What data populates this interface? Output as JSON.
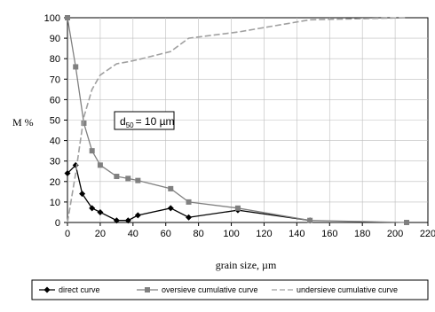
{
  "chart_data": {
    "type": "line",
    "title": "",
    "xlabel": "grain size,  µm",
    "ylabel": "M %",
    "xlim": [
      0,
      220
    ],
    "ylim": [
      0,
      100
    ],
    "x_ticks": [
      0,
      20,
      40,
      60,
      80,
      100,
      120,
      140,
      160,
      180,
      200,
      220
    ],
    "y_ticks": [
      0,
      10,
      20,
      30,
      40,
      50,
      60,
      70,
      80,
      90,
      100
    ],
    "grid": true,
    "legend_position": "bottom",
    "annotation": {
      "main": "d",
      "sub": "50",
      "value": "= 10 µm"
    },
    "series": [
      {
        "name": "direct curve",
        "marker": "diamond",
        "color": "#000000",
        "line_style": "solid",
        "points": [
          {
            "x": 0,
            "y": 24
          },
          {
            "x": 5,
            "y": 28
          },
          {
            "x": 9,
            "y": 14
          },
          {
            "x": 15,
            "y": 7
          },
          {
            "x": 20,
            "y": 5
          },
          {
            "x": 30,
            "y": 1
          },
          {
            "x": 37,
            "y": 1
          },
          {
            "x": 43,
            "y": 3.5
          },
          {
            "x": 63,
            "y": 7
          },
          {
            "x": 74,
            "y": 2.5
          },
          {
            "x": 104,
            "y": 6
          },
          {
            "x": 148,
            "y": 1
          }
        ]
      },
      {
        "name": "oversieve cumulative curve",
        "marker": "square",
        "color": "#808080",
        "line_style": "solid",
        "points": [
          {
            "x": 0,
            "y": 100
          },
          {
            "x": 5,
            "y": 76
          },
          {
            "x": 10,
            "y": 48.5
          },
          {
            "x": 15,
            "y": 35
          },
          {
            "x": 20,
            "y": 28
          },
          {
            "x": 30,
            "y": 22.5
          },
          {
            "x": 37,
            "y": 21.5
          },
          {
            "x": 43,
            "y": 20.5
          },
          {
            "x": 63,
            "y": 16.5
          },
          {
            "x": 74,
            "y": 10
          },
          {
            "x": 104,
            "y": 7
          },
          {
            "x": 148,
            "y": 1
          },
          {
            "x": 207,
            "y": 0
          }
        ]
      },
      {
        "name": "undersieve cumulative curve",
        "marker": "none",
        "color": "#a0a0a0",
        "line_style": "dashed",
        "points": [
          {
            "x": 0,
            "y": 0
          },
          {
            "x": 5,
            "y": 24
          },
          {
            "x": 10,
            "y": 51.5
          },
          {
            "x": 15,
            "y": 65
          },
          {
            "x": 20,
            "y": 72
          },
          {
            "x": 30,
            "y": 77.5
          },
          {
            "x": 37,
            "y": 78.5
          },
          {
            "x": 43,
            "y": 79.5
          },
          {
            "x": 63,
            "y": 83.5
          },
          {
            "x": 74,
            "y": 90
          },
          {
            "x": 104,
            "y": 93
          },
          {
            "x": 148,
            "y": 99
          },
          {
            "x": 207,
            "y": 100
          }
        ]
      }
    ]
  }
}
